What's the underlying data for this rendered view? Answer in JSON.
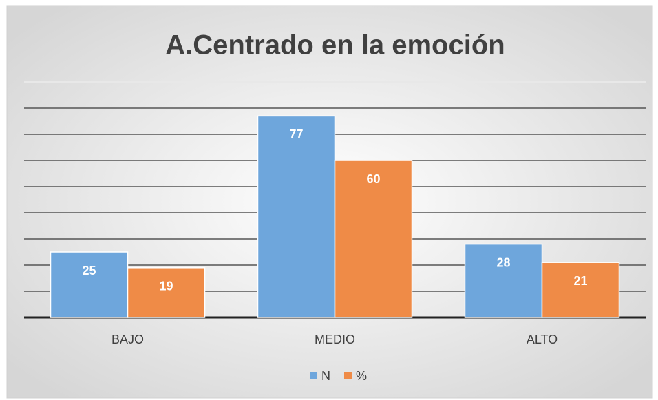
{
  "chart_data": {
    "type": "bar",
    "title": "A.Centrado en la emoción",
    "categories": [
      "BAJO",
      "MEDIO",
      "ALTO"
    ],
    "series": [
      {
        "name": "N",
        "color": "#6ea6dc",
        "values": [
          25,
          77,
          28
        ]
      },
      {
        "name": "%",
        "color": "#ef8b47",
        "values": [
          19,
          60,
          21
        ]
      }
    ],
    "ylim": [
      0,
      80
    ],
    "yticks": [
      0,
      10,
      20,
      30,
      40,
      50,
      60,
      70,
      80
    ],
    "grid": true,
    "legend": "bottom"
  }
}
